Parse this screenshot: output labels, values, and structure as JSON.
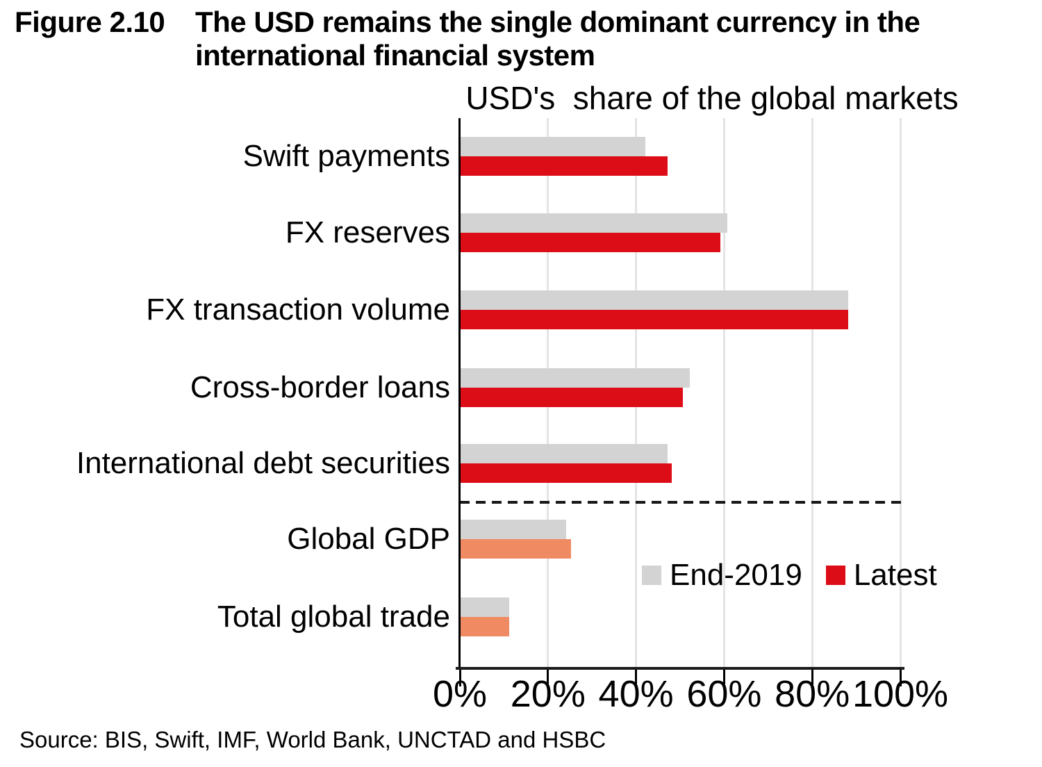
{
  "figure": {
    "label": "Figure 2.10",
    "title": "The USD remains the single dominant currency in the international financial system"
  },
  "chart_data": {
    "type": "bar",
    "orientation": "horizontal",
    "title": "USD's  share of the global markets",
    "categories": [
      "Swift payments",
      "FX reserves",
      "FX transaction volume",
      "Cross-border loans",
      "International debt securities",
      "Global GDP",
      "Total global trade"
    ],
    "series": [
      {
        "name": "End-2019",
        "color": "#D3D3D3",
        "values": [
          42,
          60.5,
          88,
          52,
          47,
          24,
          11
        ]
      },
      {
        "name": "Latest",
        "color": "#DD0D18",
        "values": [
          47,
          59,
          88,
          50.5,
          48,
          25,
          11
        ]
      }
    ],
    "latest_alt_color": "#F08A62",
    "alt_color_categories": [
      "Global GDP",
      "Total global trade"
    ],
    "xlim": [
      0,
      100
    ],
    "x_tick_labels": [
      "0%",
      "20%",
      "40%",
      "60%",
      "80%",
      "100%"
    ],
    "grid": "vertical-light",
    "separator": {
      "style": "dashed",
      "after_category": "International debt securities"
    },
    "legend": {
      "position": "inside-lower-right",
      "items": [
        {
          "label": "End-2019",
          "color": "#D3D3D3"
        },
        {
          "label": "Latest",
          "color": "#DD0D18"
        }
      ]
    }
  },
  "source": "Source: BIS, Swift, IMF, World Bank, UNCTAD and HSBC"
}
